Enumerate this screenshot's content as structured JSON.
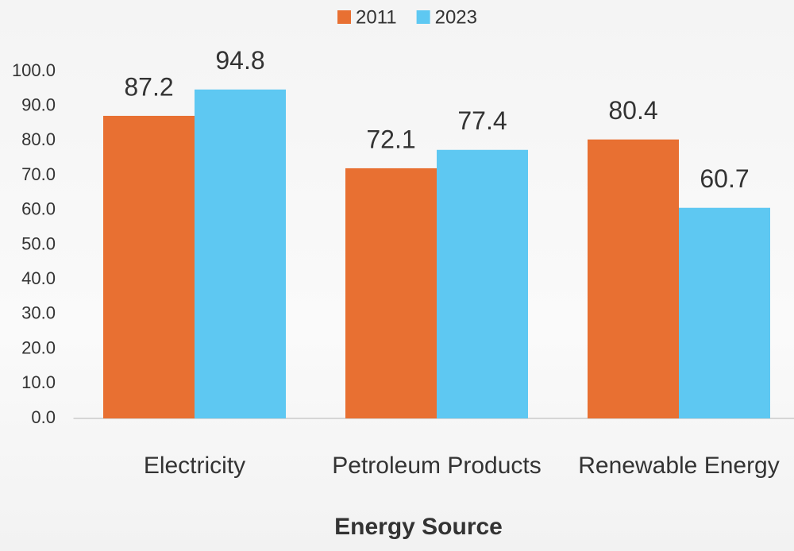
{
  "chart_data": {
    "type": "bar",
    "x_label": "Energy Source",
    "categories": [
      "Electricity",
      "Petroleum Products",
      "Renewable Energy"
    ],
    "series": [
      {
        "name": "2011",
        "color": "#e87032",
        "values": [
          87.2,
          72.1,
          80.4
        ]
      },
      {
        "name": "2023",
        "color": "#5ec8f2",
        "values": [
          94.8,
          77.4,
          60.7
        ]
      }
    ],
    "ylim": [
      0,
      100
    ],
    "yticks": [
      {
        "value": 0,
        "label": "0.0"
      },
      {
        "value": 10,
        "label": "10.0"
      },
      {
        "value": 20,
        "label": "20.0"
      },
      {
        "value": 30,
        "label": "30.0"
      },
      {
        "value": 40,
        "label": "40.0"
      },
      {
        "value": 50,
        "label": "50.0"
      },
      {
        "value": 60,
        "label": "60.0"
      },
      {
        "value": 70,
        "label": "70.0"
      },
      {
        "value": 80,
        "label": "80.0"
      },
      {
        "value": 90,
        "label": "90.0"
      },
      {
        "value": 100,
        "label": "100.0"
      }
    ],
    "grid": false,
    "legend": "top"
  }
}
